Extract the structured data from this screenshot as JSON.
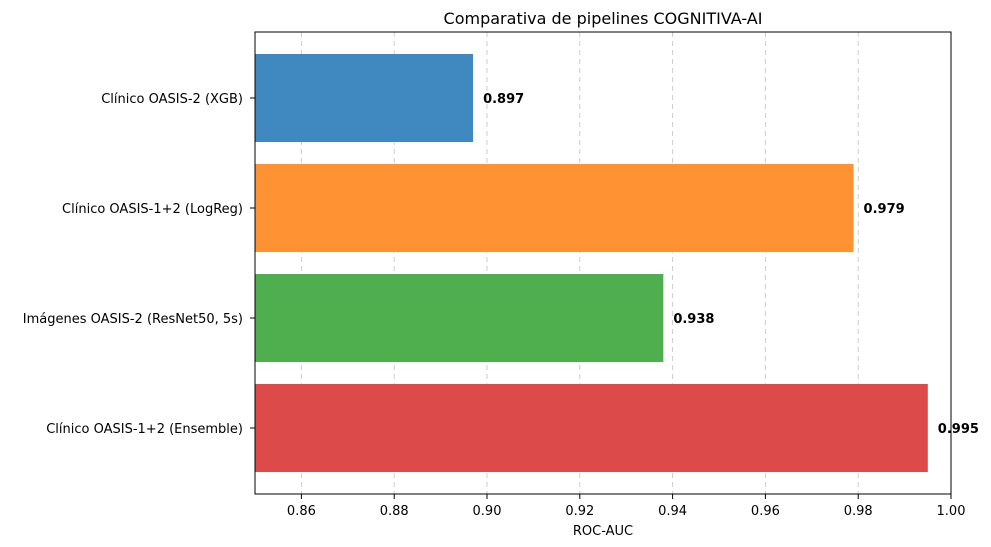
{
  "chart_data": {
    "type": "bar",
    "orientation": "horizontal",
    "title": "Comparativa de pipelines COGNITIVA-AI",
    "xlabel": "ROC-AUC",
    "ylabel": "",
    "xlim": [
      0.85,
      1.0
    ],
    "xticks": [
      0.86,
      0.88,
      0.9,
      0.92,
      0.94,
      0.96,
      0.98,
      1.0
    ],
    "xtick_labels": [
      "0.86",
      "0.88",
      "0.90",
      "0.92",
      "0.94",
      "0.96",
      "0.98",
      "1.00"
    ],
    "grid": "x-dashed",
    "categories": [
      "Clínico OASIS-2 (XGB)",
      "Clínico OASIS-1+2 (LogReg)",
      "Imágenes OASIS-2 (ResNet50, 5s)",
      "Clínico OASIS-1+2 (Ensemble)"
    ],
    "values": [
      0.897,
      0.979,
      0.938,
      0.995
    ],
    "value_labels": [
      "0.897",
      "0.979",
      "0.938",
      "0.995"
    ],
    "colors": [
      "#3f88c0",
      "#ff9232",
      "#4faf4f",
      "#dc4a4a"
    ]
  }
}
